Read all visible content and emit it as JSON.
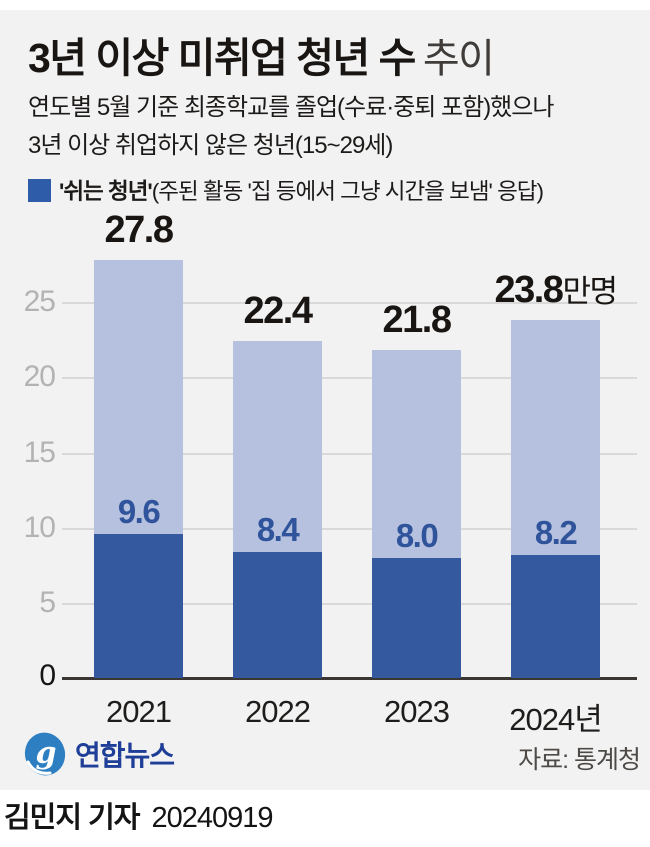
{
  "colors": {
    "bg": "#f2f2f2",
    "bar_light": "#b5c1de",
    "bar_dark": "#35599e",
    "legend": "#2e5ca8",
    "value_text": "#2f549b",
    "axis_gray": "#b3b3b3",
    "gridline": "#d9d9d9",
    "baseline": "#3a3632",
    "logo_blue": "#2e7fc2",
    "logo_navy": "#1e3e97"
  },
  "header": {
    "title_bold": "3년 이상 미취업 청년 수",
    "title_light": "추이",
    "subtitle_line1": "연도별 5월 기준 최종학교를 졸업(수료·중퇴 포함)했으나",
    "subtitle_line2": "3년 이상 취업하지 않은 청년(15~29세)"
  },
  "legend": {
    "label_bold": "'쉬는 청년'",
    "label_rest": "(주된 활동 '집 등에서 그냥 시간을 보냄' 응답)"
  },
  "chart_data": {
    "type": "bar",
    "overlay": true,
    "categories": [
      "2021",
      "2022",
      "2023",
      "2024년"
    ],
    "series": [
      {
        "name": "3년 이상 미취업 청년 수",
        "values": [
          27.8,
          22.4,
          21.8,
          23.8
        ]
      },
      {
        "name": "쉬는 청년",
        "values": [
          9.6,
          8.4,
          8.0,
          8.2
        ]
      }
    ],
    "unit": "만명",
    "total_labels": [
      {
        "num": "27.8",
        "unit": ""
      },
      {
        "num": "22.4",
        "unit": ""
      },
      {
        "num": "21.8",
        "unit": ""
      },
      {
        "num": "23.8",
        "unit": "만명"
      }
    ],
    "inner_labels": [
      "9.6",
      "8.4",
      "8.0",
      "8.2"
    ],
    "ytick_labels": [
      "25",
      "20",
      "15",
      "10",
      "5",
      "0"
    ],
    "yticks": [
      0,
      5,
      10,
      15,
      20,
      25
    ],
    "ylim": [
      0,
      29
    ],
    "grid": true,
    "legend_position": "top-left"
  },
  "footer": {
    "logo_text": "연합뉴스",
    "source": "자료: 통계청"
  },
  "byline": {
    "reporter": "김민지 기자",
    "date": "20240919"
  }
}
